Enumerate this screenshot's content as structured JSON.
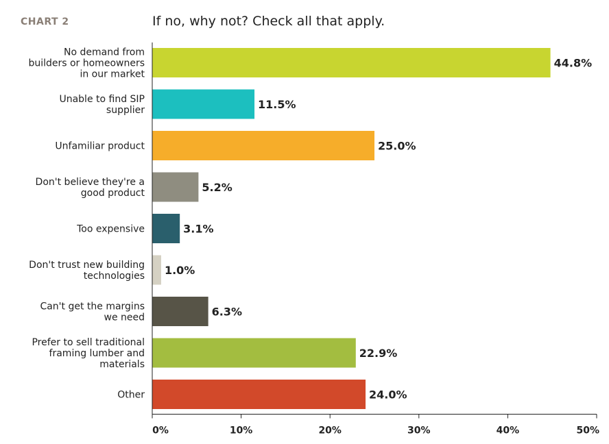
{
  "header": {
    "chart_number": "CHART 2",
    "title": "If no, why not? Check all that apply."
  },
  "chart_data": {
    "type": "bar",
    "orientation": "horizontal",
    "title": "If no, why not? Check all that apply.",
    "categories": [
      [
        "No demand from",
        "builders or homeowners",
        "in our market"
      ],
      [
        "Unable to find SIP",
        "supplier"
      ],
      [
        "Unfamiliar product"
      ],
      [
        "Don't believe they're a",
        "good product"
      ],
      [
        "Too expensive"
      ],
      [
        "Don't trust new building",
        "technologies"
      ],
      [
        "Can't get the margins",
        "we need"
      ],
      [
        "Prefer to sell traditional",
        "framing lumber and",
        "materials"
      ],
      [
        "Other"
      ]
    ],
    "values": [
      44.8,
      11.5,
      25.0,
      5.2,
      3.1,
      1.0,
      6.3,
      22.9,
      24.0
    ],
    "value_labels": [
      "44.8%",
      "11.5%",
      "25.0%",
      "5.2%",
      "3.1%",
      "1.0%",
      "6.3%",
      "22.9%",
      "24.0%"
    ],
    "colors": [
      "#c8d530",
      "#1cbfbf",
      "#f6ad2a",
      "#8f8d80",
      "#2a5f6c",
      "#d5d1c3",
      "#575447",
      "#a3bd40",
      "#d2492a"
    ],
    "xlim": [
      0,
      50
    ],
    "xticks": [
      "0%",
      "10%",
      "20%",
      "30%",
      "40%",
      "50%"
    ],
    "xtick_values": [
      0,
      10,
      20,
      30,
      40,
      50
    ],
    "grid": false,
    "legend": "none"
  }
}
